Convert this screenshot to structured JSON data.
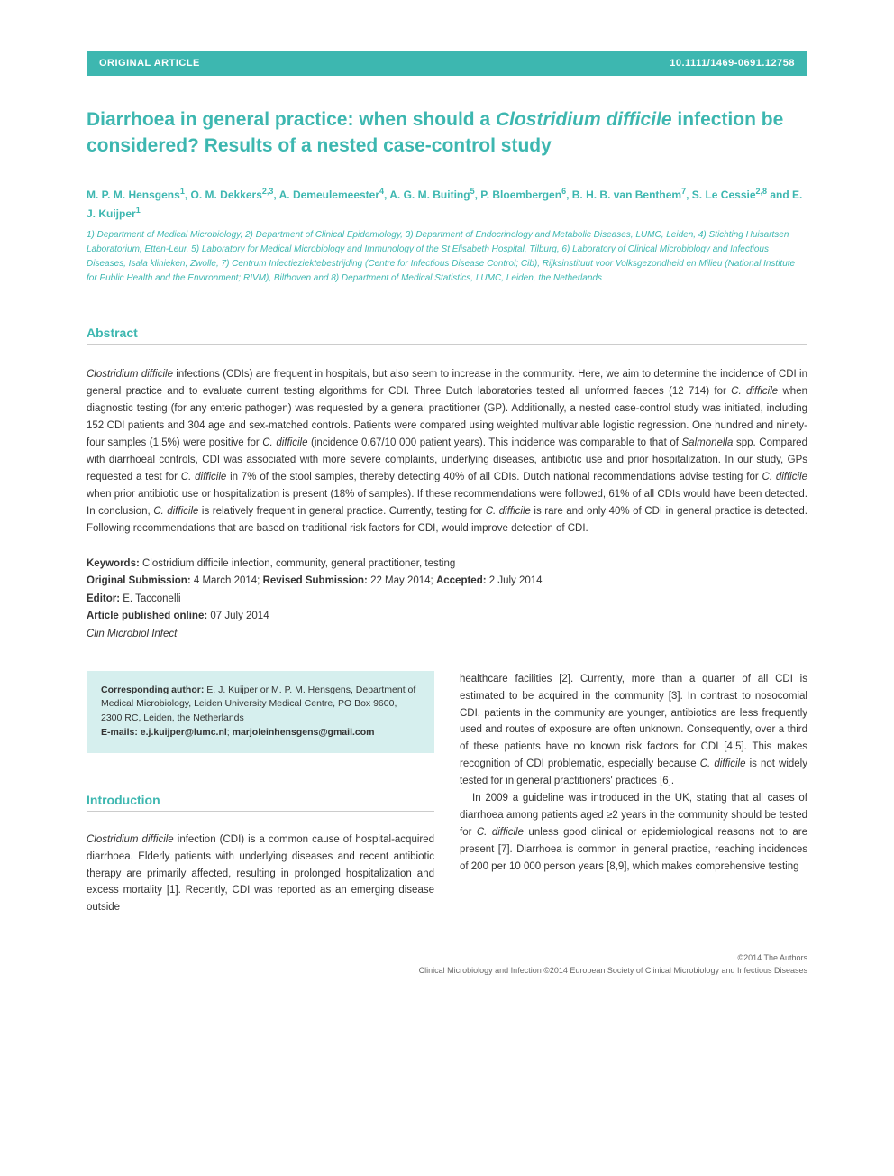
{
  "colors": {
    "teal": "#3db7b0",
    "teal_light": "#d6efee",
    "text": "#333333",
    "border": "#cccccc",
    "footer": "#666666",
    "background": "#ffffff"
  },
  "header": {
    "left": "ORIGINAL ARTICLE",
    "right": "10.1111/1469-0691.12758"
  },
  "title_pre": "Diarrhoea in general practice: when should a ",
  "title_italic": "Clostridium difficile",
  "title_post": " infection be considered? Results of a nested case-control study",
  "authors_html": "M. P. M. Hensgens<sup>1</sup>, O. M. Dekkers<sup>2,3</sup>, A. Demeulemeester<sup>4</sup>, A. G. M. Buiting<sup>5</sup>, P. Bloembergen<sup>6</sup>, B. H. B. van Benthem<sup>7</sup>, S. Le Cessie<sup>2,8</sup> and E. J. Kuijper<sup>1</sup>",
  "affiliations": "1) Department of Medical Microbiology, 2) Department of Clinical Epidemiology, 3) Department of Endocrinology and Metabolic Diseases, LUMC, Leiden, 4) Stichting Huisartsen Laboratorium, Etten-Leur, 5) Laboratory for Medical Microbiology and Immunology of the St Elisabeth Hospital, Tilburg, 6) Laboratory of Clinical Microbiology and Infectious Diseases, Isala klinieken, Zwolle, 7) Centrum Infectieziektebestrijding (Centre for Infectious Disease Control; Cib), Rijksinstituut voor Volksgezondheid en Milieu (National Institute for Public Health and the Environment; RIVM), Bilthoven and 8) Department of Medical Statistics, LUMC, Leiden, the Netherlands",
  "abstract_heading": "Abstract",
  "abstract": "Clostridium difficile infections (CDIs) are frequent in hospitals, but also seem to increase in the community. Here, we aim to determine the incidence of CDI in general practice and to evaluate current testing algorithms for CDI. Three Dutch laboratories tested all unformed faeces (12 714) for C. difficile when diagnostic testing (for any enteric pathogen) was requested by a general practitioner (GP). Additionally, a nested case-control study was initiated, including 152 CDI patients and 304 age and sex-matched controls. Patients were compared using weighted multivariable logistic regression. One hundred and ninety-four samples (1.5%) were positive for C. difficile (incidence 0.67/10 000 patient years). This incidence was comparable to that of Salmonella spp. Compared with diarrhoeal controls, CDI was associated with more severe complaints, underlying diseases, antibiotic use and prior hospitalization. In our study, GPs requested a test for C. difficile in 7% of the stool samples, thereby detecting 40% of all CDIs. Dutch national recommendations advise testing for C. difficile when prior antibiotic use or hospitalization is present (18% of samples). If these recommendations were followed, 61% of all CDIs would have been detected. In conclusion, C. difficile is relatively frequent in general practice. Currently, testing for C. difficile is rare and only 40% of CDI in general practice is detected. Following recommendations that are based on traditional risk factors for CDI, would improve detection of CDI.",
  "meta": {
    "keywords_label": "Keywords:",
    "keywords": " Clostridium difficile infection, community, general practitioner, testing",
    "orig_label": "Original Submission:",
    "orig_date": " 4 March 2014; ",
    "rev_label": "Revised Submission:",
    "rev_date": " 22 May 2014; ",
    "acc_label": "Accepted:",
    "acc_date": " 2 July 2014",
    "editor_label": "Editor:",
    "editor": " E. Tacconelli",
    "pub_label": "Article published online:",
    "pub_date": " 07 July 2014",
    "journal": "Clin Microbiol Infect"
  },
  "corr": {
    "label": "Corresponding author:",
    "text": " E. J. Kuijper or M. P. M. Hensgens, Department of Medical Microbiology, Leiden University Medical Centre, PO Box 9600, 2300 RC, Leiden, the Netherlands",
    "email_label": "E-mails: ",
    "email1": "e.j.kuijper@lumc.nl",
    "email_sep": "; ",
    "email2": "marjoleinhensgens@gmail.com"
  },
  "intro_heading": "Introduction",
  "intro_col1": "Clostridium difficile infection (CDI) is a common cause of hospital-acquired diarrhoea. Elderly patients with underlying diseases and recent antibiotic therapy are primarily affected, resulting in prolonged hospitalization and excess mortality [1]. Recently, CDI was reported as an emerging disease outside",
  "intro_col2_p1": "healthcare facilities [2]. Currently, more than a quarter of all CDI is estimated to be acquired in the community [3]. In contrast to nosocomial CDI, patients in the community are younger, antibiotics are less frequently used and routes of exposure are often unknown. Consequently, over a third of these patients have no known risk factors for CDI [4,5]. This makes recognition of CDI problematic, especially because C. difficile is not widely tested for in general practitioners' practices [6].",
  "intro_col2_p2": "In 2009 a guideline was introduced in the UK, stating that all cases of diarrhoea among patients aged ≥2 years in the community should be tested for C. difficile unless good clinical or epidemiological reasons not to are present [7]. Diarrhoea is common in general practice, reaching incidences of 200 per 10 000 person years [8,9], which makes comprehensive testing",
  "footer": {
    "line1": "©2014 The Authors",
    "line2": "Clinical Microbiology and Infection ©2014 European Society of Clinical Microbiology and Infectious Diseases"
  }
}
